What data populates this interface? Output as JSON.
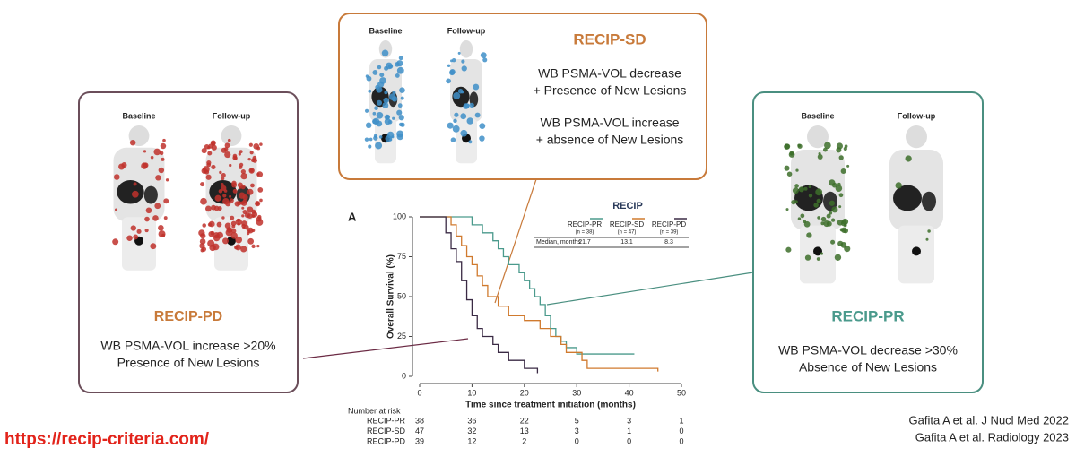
{
  "boxes": [
    {
      "title": "RECIP-SD",
      "images": [
        "Baseline",
        "Follow-up"
      ],
      "lines": [
        "WB PSMA-VOL decrease",
        "+ Presence of New Lesions",
        "WB PSMA-VOL increase",
        "+ absence of New Lesions"
      ]
    },
    {
      "title": "RECIP-PD",
      "images": [
        "Baseline",
        "Follow-up"
      ],
      "lines": [
        "WB PSMA-VOL increase >20%",
        "Presence of New Lesions"
      ]
    },
    {
      "title": "RECIP-PR",
      "images": [
        "Baseline",
        "Follow-up"
      ],
      "lines": [
        "WB PSMA-VOL decrease >30%",
        "Absence of New Lesions"
      ]
    }
  ],
  "chart_data": {
    "type": "step",
    "panel": "A",
    "xlabel": "Time since treatment initiation (months)",
    "ylabel": "Overall Survival (%)",
    "xlim": [
      0,
      50
    ],
    "xticks": [
      0,
      10,
      20,
      30,
      40,
      50
    ],
    "ylim": [
      0,
      100
    ],
    "yticks": [
      0,
      25,
      50,
      75,
      100
    ],
    "legend_title": "RECIP",
    "median_label": "Median, months",
    "series": [
      {
        "name": "RECIP-PR",
        "n_label": "(n = 38)",
        "median": 21.7,
        "color": "#4a9a8c",
        "x": [
          0,
          7,
          10,
          12,
          14,
          15,
          16,
          17,
          19,
          20,
          21,
          22,
          23,
          24,
          25,
          26,
          27,
          28,
          30,
          41
        ],
        "values": [
          100,
          100,
          95,
          90,
          85,
          80,
          75,
          70,
          65,
          60,
          55,
          50,
          45,
          38,
          30,
          25,
          22,
          18,
          14,
          14
        ]
      },
      {
        "name": "RECIP-SD",
        "n_label": "(n = 47)",
        "median": 13.1,
        "color": "#d07a2e",
        "x": [
          0,
          5,
          6,
          7,
          8,
          9,
          10,
          11,
          12,
          13,
          15,
          17,
          20,
          23,
          25,
          27,
          28,
          31,
          32,
          45.5
        ],
        "values": [
          100,
          100,
          95,
          88,
          82,
          75,
          70,
          63,
          57,
          50,
          44,
          38,
          35,
          30,
          25,
          20,
          15,
          10,
          5,
          3
        ]
      },
      {
        "name": "RECIP-PD",
        "n_label": "(n = 39)",
        "median": 8.3,
        "color": "#3a2a44",
        "x": [
          0,
          4,
          5,
          6,
          7,
          8,
          9,
          10,
          11,
          12,
          14,
          15,
          17,
          20,
          22.5
        ],
        "values": [
          100,
          100,
          90,
          80,
          72,
          60,
          48,
          38,
          30,
          25,
          20,
          15,
          10,
          5,
          2
        ]
      }
    ],
    "risk_title": "Number at risk",
    "risk": [
      [
        38,
        36,
        22,
        5,
        3,
        1
      ],
      [
        47,
        32,
        13,
        3,
        1,
        0
      ],
      [
        39,
        12,
        2,
        0,
        0,
        0
      ]
    ]
  },
  "url": "https://recip-criteria.com/",
  "citations": [
    "Gafita A et al. J Nucl Med 2022",
    "Gafita A et al. Radiology 2023"
  ]
}
